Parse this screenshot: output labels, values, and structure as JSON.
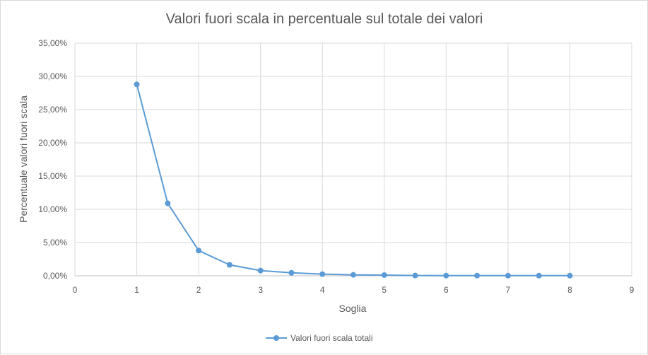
{
  "chart_data": {
    "type": "line",
    "title": "Valori fuori scala in percentuale sul totale dei valori",
    "xlabel": "Soglia",
    "ylabel": "Percentuale valori fuori scala",
    "xlim": [
      0,
      9
    ],
    "ylim": [
      0,
      35
    ],
    "x_ticks": [
      "0",
      "1",
      "2",
      "3",
      "4",
      "5",
      "6",
      "7",
      "8",
      "9"
    ],
    "y_ticks": [
      "0,00%",
      "5,00%",
      "10,00%",
      "15,00%",
      "20,00%",
      "25,00%",
      "30,00%",
      "35,00%"
    ],
    "grid": true,
    "legend_position": "bottom",
    "series": [
      {
        "name": "Valori fuori scala totali",
        "color": "#5b9bd5",
        "x": [
          1,
          1.5,
          2,
          2.5,
          3,
          3.5,
          4,
          4.5,
          5,
          5.5,
          6,
          6.5,
          7,
          7.5,
          8
        ],
        "y": [
          28.8,
          10.9,
          3.8,
          1.65,
          0.78,
          0.45,
          0.25,
          0.14,
          0.11,
          0.04,
          0.03,
          0.03,
          0.02,
          0.02,
          0.02
        ]
      }
    ]
  }
}
